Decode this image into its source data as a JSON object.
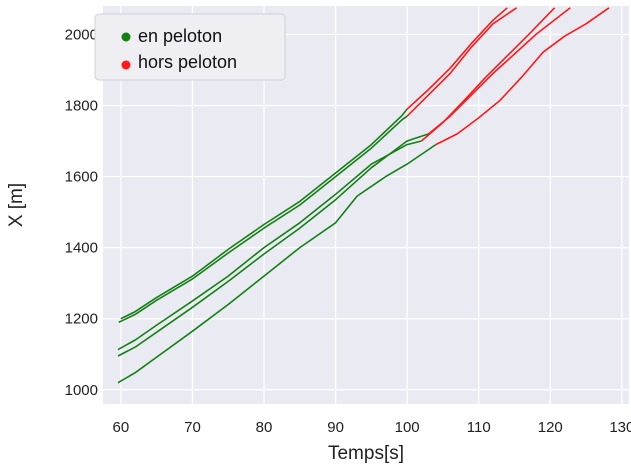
{
  "chart_data": {
    "type": "line",
    "xlabel": "Temps[s]",
    "ylabel": "X [m]",
    "xlim": [
      57.5,
      131
    ],
    "ylim": [
      960,
      2080
    ],
    "xticks": [
      60,
      70,
      80,
      90,
      100,
      110,
      120,
      130
    ],
    "yticks": [
      1000,
      1200,
      1400,
      1600,
      1800,
      2000
    ],
    "grid": true,
    "background": "#eaeaf2",
    "legend": {
      "placement": "top-left",
      "entries": [
        {
          "label": "en peloton",
          "color": "#138013"
        },
        {
          "label": "hors peloton",
          "color": "#ff1a1a"
        }
      ]
    },
    "series": [
      {
        "in": [
          [
            60,
            1200
          ],
          [
            62,
            1220
          ],
          [
            65,
            1260
          ],
          [
            70,
            1320
          ],
          [
            75,
            1395
          ],
          [
            80,
            1465
          ],
          [
            85,
            1530
          ],
          [
            90,
            1610
          ],
          [
            95,
            1690
          ],
          [
            99.3,
            1772
          ],
          [
            100,
            1790
          ]
        ],
        "out": [
          [
            100,
            1790
          ],
          [
            103,
            1845
          ],
          [
            106,
            1905
          ],
          [
            109,
            1975
          ],
          [
            112,
            2040
          ],
          [
            114,
            2075
          ]
        ]
      },
      {
        "in": [
          [
            59.7,
            1190
          ],
          [
            62,
            1212
          ],
          [
            65,
            1252
          ],
          [
            70,
            1312
          ],
          [
            75,
            1385
          ],
          [
            80,
            1455
          ],
          [
            85,
            1520
          ],
          [
            90,
            1600
          ],
          [
            95,
            1680
          ],
          [
            99.3,
            1760
          ],
          [
            100,
            1770
          ]
        ],
        "out": [
          [
            100,
            1770
          ],
          [
            103,
            1830
          ],
          [
            106,
            1890
          ],
          [
            109,
            1965
          ],
          [
            112,
            2030
          ],
          [
            115.3,
            2075
          ]
        ]
      },
      {
        "in": [
          [
            59.6,
            1113
          ],
          [
            62,
            1140
          ],
          [
            65,
            1182
          ],
          [
            70,
            1250
          ],
          [
            75,
            1320
          ],
          [
            80,
            1400
          ],
          [
            85,
            1470
          ],
          [
            90,
            1550
          ],
          [
            95,
            1635
          ],
          [
            100,
            1690
          ],
          [
            102,
            1700
          ]
        ],
        "out": [
          [
            102,
            1700
          ],
          [
            105,
            1752
          ],
          [
            108,
            1815
          ],
          [
            111,
            1880
          ],
          [
            114,
            1940
          ],
          [
            117,
            2000
          ],
          [
            120.6,
            2075
          ]
        ]
      },
      {
        "in": [
          [
            59.6,
            1095
          ],
          [
            62,
            1120
          ],
          [
            65,
            1162
          ],
          [
            70,
            1232
          ],
          [
            75,
            1305
          ],
          [
            80,
            1382
          ],
          [
            85,
            1455
          ],
          [
            90,
            1535
          ],
          [
            95,
            1625
          ],
          [
            100,
            1700
          ],
          [
            103,
            1720
          ]
        ],
        "out": [
          [
            103,
            1720
          ],
          [
            106,
            1770
          ],
          [
            109,
            1830
          ],
          [
            112,
            1890
          ],
          [
            115,
            1945
          ],
          [
            118,
            2000
          ],
          [
            122.8,
            2075
          ]
        ]
      },
      {
        "in": [
          [
            59.6,
            1020
          ],
          [
            62,
            1048
          ],
          [
            65,
            1092
          ],
          [
            70,
            1165
          ],
          [
            75,
            1240
          ],
          [
            80,
            1320
          ],
          [
            85,
            1400
          ],
          [
            90,
            1470
          ],
          [
            93,
            1545
          ],
          [
            97,
            1600
          ],
          [
            100,
            1635
          ],
          [
            104,
            1690
          ]
        ],
        "out": [
          [
            104,
            1690
          ],
          [
            107,
            1720
          ],
          [
            110,
            1765
          ],
          [
            113,
            1815
          ],
          [
            116,
            1880
          ],
          [
            119,
            1950
          ],
          [
            122,
            1995
          ],
          [
            125,
            2030
          ],
          [
            128.2,
            2075
          ]
        ]
      }
    ]
  }
}
